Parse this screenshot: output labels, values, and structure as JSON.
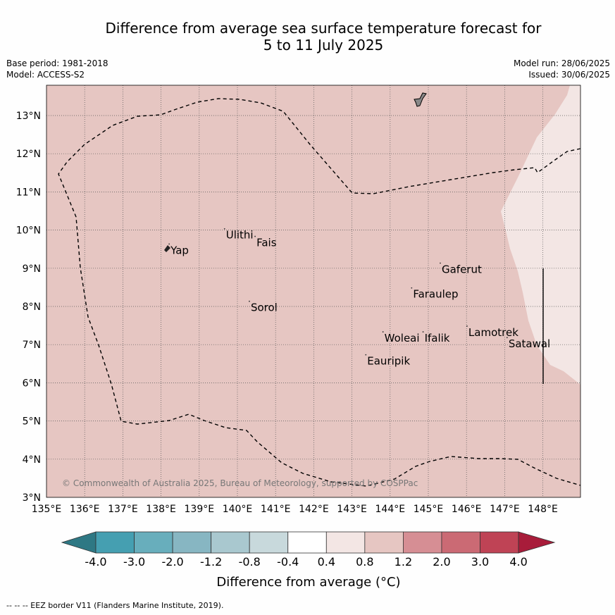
{
  "title": {
    "line1": "Difference from average sea surface temperature forecast for",
    "line2": "5 to 11 July 2025"
  },
  "meta": {
    "base_period": "Base period: 1981-2018",
    "model": "Model: ACCESS-S2",
    "model_run": "Model run: 28/06/2025",
    "issued": "Issued: 30/06/2025"
  },
  "map": {
    "lon_range": [
      135,
      149
    ],
    "lat_range": [
      3,
      13.8
    ],
    "lon_ticks": [
      "135°E",
      "136°E",
      "137°E",
      "138°E",
      "139°E",
      "140°E",
      "141°E",
      "142°E",
      "143°E",
      "144°E",
      "145°E",
      "146°E",
      "147°E",
      "148°E"
    ],
    "lat_ticks": [
      "3°N",
      "4°N",
      "5°N",
      "6°N",
      "7°N",
      "8°N",
      "9°N",
      "10°N",
      "11°N",
      "12°N",
      "13°N"
    ],
    "background_anomaly_class": "0.8 to 1.2",
    "background_color": "#e6c6c2",
    "east_region_class": "0.4 to 0.8",
    "east_region_color": "#f3e6e4",
    "copyright": "© Commonwealth of Australia 2025, Bureau of Meteorology, supported by COSPPac",
    "places": [
      {
        "name": "Yap",
        "lon": 138.25,
        "lat": 9.45
      },
      {
        "name": "Ulithi",
        "lon": 139.7,
        "lat": 9.85
      },
      {
        "name": "Fais",
        "lon": 140.5,
        "lat": 9.65
      },
      {
        "name": "Gaferut",
        "lon": 145.35,
        "lat": 8.95
      },
      {
        "name": "Faraulep",
        "lon": 144.6,
        "lat": 8.3
      },
      {
        "name": "Sorol",
        "lon": 140.35,
        "lat": 7.95
      },
      {
        "name": "Woleai",
        "lon": 143.85,
        "lat": 7.15
      },
      {
        "name": "Ifalik",
        "lon": 144.9,
        "lat": 7.15
      },
      {
        "name": "Lamotrek",
        "lon": 146.05,
        "lat": 7.3
      },
      {
        "name": "Satawal",
        "lon": 147.1,
        "lat": 7.0
      },
      {
        "name": "Eauripik",
        "lon": 143.4,
        "lat": 6.55
      }
    ]
  },
  "legend": {
    "tick_labels": [
      "-4.0",
      "-3.0",
      "-2.0",
      "-1.2",
      "-0.8",
      "-0.4",
      "0.4",
      "0.8",
      "1.2",
      "2.0",
      "3.0",
      "4.0"
    ],
    "colors": [
      "#2e7884",
      "#459fb1",
      "#68aebc",
      "#87b6c2",
      "#a9c8cf",
      "#c8d9dc",
      "#ffffff",
      "#f3e6e4",
      "#e6c6c2",
      "#d68e94",
      "#cb6a74",
      "#bf4355",
      "#a81c3a"
    ],
    "label": "Difference from average (°C)"
  },
  "footer": {
    "text": "--  --  -- EEZ border V11 (Flanders Marine Institute, 2019)."
  }
}
